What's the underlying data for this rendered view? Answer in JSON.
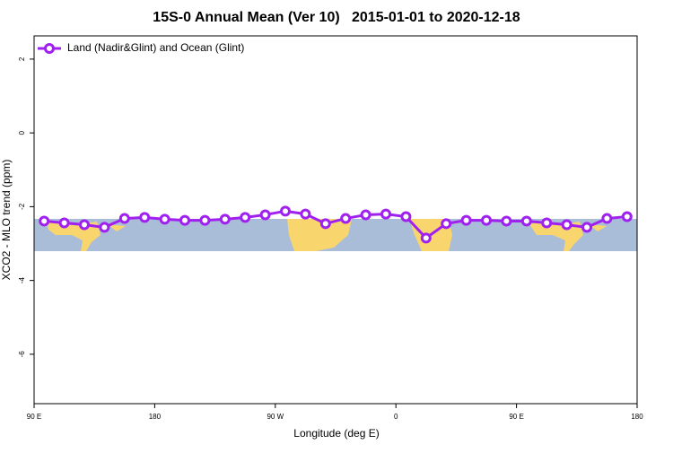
{
  "chart_data": {
    "type": "line",
    "title": "15S-0 Annual Mean (Ver 10)   2015-01-01 to 2020-12-18",
    "xlabel": "Longitude (deg E)",
    "ylabel": "XCO2 - MLO trend (ppm)",
    "x": [
      97.5,
      112.5,
      127.5,
      142.5,
      157.5,
      172.5,
      187.5,
      202.5,
      217.5,
      232.5,
      247.5,
      262.5,
      277.5,
      292.5,
      307.5,
      322.5,
      337.5,
      352.5,
      367.5,
      382.5,
      397.5,
      412.5,
      427.5,
      442.5,
      457.5,
      472.5,
      487.5,
      502.5,
      517.5,
      532.5
    ],
    "series": [
      {
        "name": "Land (Nadir&Glint) and Ocean (Glint)",
        "color": "#a020f0",
        "values": [
          -2.39,
          -2.44,
          -2.49,
          -2.56,
          -2.32,
          -2.29,
          -2.34,
          -2.37,
          -2.37,
          -2.34,
          -2.29,
          -2.22,
          -2.12,
          -2.2,
          -2.46,
          -2.32,
          -2.22,
          -2.2,
          -2.27,
          -2.85,
          -2.46,
          -2.37,
          -2.37,
          -2.39,
          -2.39,
          -2.44,
          -2.49,
          -2.56,
          -2.32,
          -2.27
        ]
      }
    ],
    "xlim": [
      90,
      540
    ],
    "xticks": [
      {
        "value": 90,
        "label": "90 E"
      },
      180,
      {
        "value": 270,
        "label": "90 W"
      },
      {
        "value": 360,
        "label": "0"
      },
      {
        "value": 450,
        "label": "90 E"
      },
      {
        "value": 540,
        "label": "180"
      }
    ],
    "ylim": [
      -7.34,
      2.63
    ],
    "yticks": [
      2,
      0,
      -2,
      -4,
      -6
    ],
    "legend": "top-left"
  }
}
